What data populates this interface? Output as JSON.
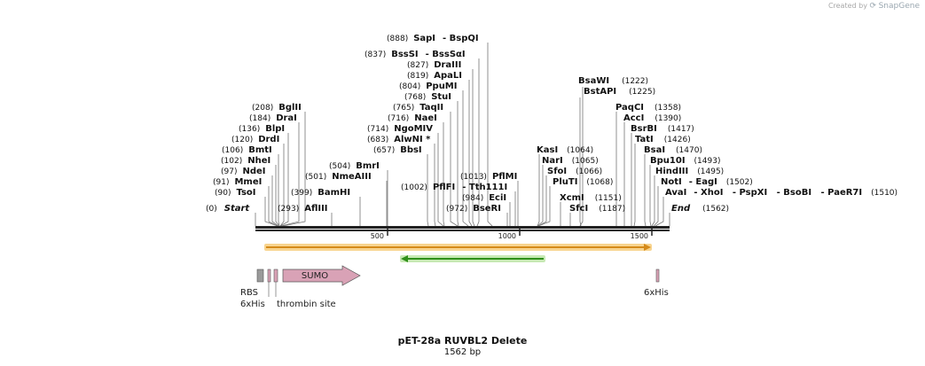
{
  "credit": {
    "prefix": "Created by",
    "brand": "SnapGene"
  },
  "map": {
    "title": "pET-28a RUVBL2 Delete",
    "length_label": "1562 bp"
  },
  "ruler": {
    "start_label": "Start",
    "start_pos": "(0)",
    "end_label": "End",
    "end_pos": "(1562)",
    "ticks": [
      "500",
      "1000",
      "1500"
    ]
  },
  "sites": [
    {
      "pos": "(888)",
      "name": "SapI",
      "extra": "- BspQI"
    },
    {
      "pos": "(837)",
      "name": "BssSI",
      "extra": "- BssSαI"
    },
    {
      "pos": "(827)",
      "name": "DraIII"
    },
    {
      "pos": "(819)",
      "name": "ApaLI"
    },
    {
      "pos": "(804)",
      "name": "PpuMI"
    },
    {
      "pos": "(768)",
      "name": "StuI"
    },
    {
      "pos": "(765)",
      "name": "TaqII"
    },
    {
      "pos": "(716)",
      "name": "NaeI"
    },
    {
      "pos": "(714)",
      "name": "NgoMIV"
    },
    {
      "pos": "(683)",
      "name": "AlwNI *"
    },
    {
      "pos": "(657)",
      "name": "BbsI"
    },
    {
      "pos": "(1013)",
      "name": "PflMI"
    },
    {
      "pos": "(1002)",
      "name": "PflFI",
      "extra": "- Tth111I"
    },
    {
      "pos": "(984)",
      "name": "EciI"
    },
    {
      "pos": "(972)",
      "name": "BseRI"
    },
    {
      "pos": "(208)",
      "name": "BglII"
    },
    {
      "pos": "(184)",
      "name": "DraI"
    },
    {
      "pos": "(136)",
      "name": "BlpI"
    },
    {
      "pos": "(120)",
      "name": "DrdI"
    },
    {
      "pos": "(106)",
      "name": "BmtI"
    },
    {
      "pos": "(102)",
      "name": "NheI"
    },
    {
      "pos": "(97)",
      "name": "NdeI"
    },
    {
      "pos": "(91)",
      "name": "MmeI"
    },
    {
      "pos": "(90)",
      "name": "TsoI"
    },
    {
      "pos": "(504)",
      "name": "BmrI"
    },
    {
      "pos": "(501)",
      "name": "NmeAIII"
    },
    {
      "pos": "(399)",
      "name": "BamHI"
    },
    {
      "pos": "(293)",
      "name": "AflIII"
    },
    {
      "pos": "(1222)",
      "name": "BsaWI"
    },
    {
      "pos": "(1225)",
      "name": "BstAPI"
    },
    {
      "pos": "(1064)",
      "name": "KasI"
    },
    {
      "pos": "(1065)",
      "name": "NarI"
    },
    {
      "pos": "(1066)",
      "name": "SfoI"
    },
    {
      "pos": "(1068)",
      "name": "PluTI"
    },
    {
      "pos": "(1151)",
      "name": "XcmI"
    },
    {
      "pos": "(1187)",
      "name": "SfcI"
    },
    {
      "pos": "(1358)",
      "name": "PaqCI"
    },
    {
      "pos": "(1390)",
      "name": "AccI"
    },
    {
      "pos": "(1417)",
      "name": "BsrBI"
    },
    {
      "pos": "(1426)",
      "name": "TatI"
    },
    {
      "pos": "(1470)",
      "name": "BsaI"
    },
    {
      "pos": "(1493)",
      "name": "Bpu10I"
    },
    {
      "pos": "(1495)",
      "name": "HindIII"
    },
    {
      "pos": "(1502)",
      "name": "NotI",
      "extra": "- EagI"
    },
    {
      "pos": "(1510)",
      "name": "AvaI",
      "extra": "- XhoI   - PspXI   - BsoBI   - PaeR7I"
    }
  ],
  "features": [
    {
      "label": "RBS"
    },
    {
      "label": "6xHis"
    },
    {
      "label": "thrombin site"
    },
    {
      "label": "SUMO"
    },
    {
      "label": "6xHis"
    }
  ],
  "colors": {
    "backbone": "#222222",
    "orf_fill": "#f6c56a",
    "orf_line": "#d58a1a",
    "rev_fill": "#b9e3a1",
    "rev_line": "#2f8f1a",
    "sumo": "#d9a2b6",
    "his": "#d9a2b6",
    "rbs": "#9a9a9a"
  }
}
